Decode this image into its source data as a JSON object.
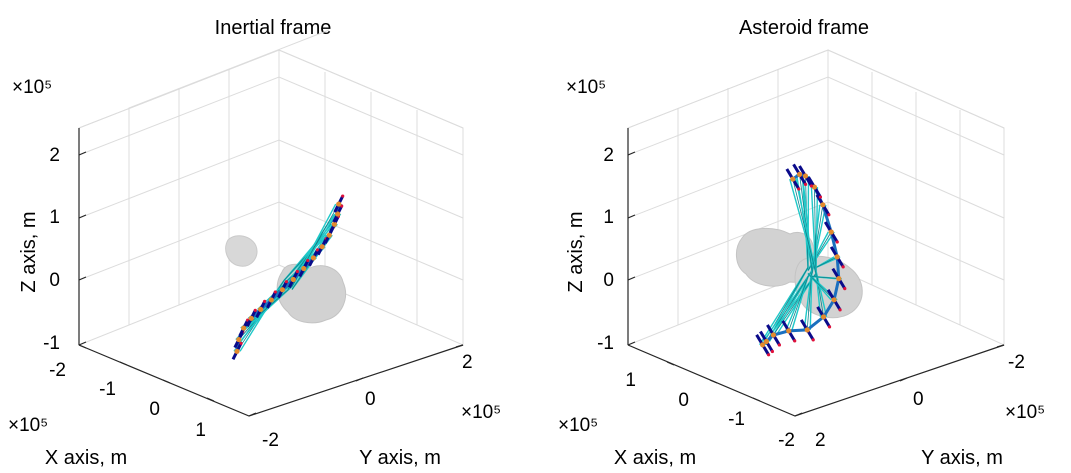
{
  "figure": {
    "background": "#ffffff",
    "colors": {
      "trajectory": "#1a6fbf",
      "tether": "#1fc8c8",
      "tether_edge": "#0f7f88",
      "node": "#e38a2e",
      "spacecraft": "#0a0a8a",
      "spacecraft_tip": "#e0103a",
      "asteroid": "#d2d2d2",
      "grid": "#dcdcdc"
    }
  },
  "chart_data": [
    {
      "type": "line3d",
      "title": "Inertial frame",
      "xlabel": "X axis, m",
      "ylabel": "Y axis, m",
      "zlabel": "Z axis, m",
      "x_multiplier": "×10⁵",
      "y_multiplier": "×10⁵",
      "z_multiplier": "×10⁵",
      "xticks": [
        "-2",
        "-1",
        "0",
        "1"
      ],
      "yticks": [
        "-2",
        "0",
        "2"
      ],
      "zticks": [
        "-1",
        "0",
        "1",
        "2"
      ],
      "xlim": [
        -2,
        1.5
      ],
      "ylim": [
        -2.5,
        2.5
      ],
      "zlim": [
        -1,
        2.2
      ],
      "grid": true,
      "series": [
        {
          "role": "trajectory",
          "x": [
            0.78,
            0.73,
            0.61,
            0.42,
            0.18,
            -0.08,
            -0.34,
            -0.58,
            -0.79,
            -0.96,
            -1.08,
            -1.13,
            -1.11,
            -1.01,
            -0.83
          ],
          "y": [
            -0.53,
            -0.52,
            -0.48,
            -0.42,
            -0.35,
            -0.26,
            -0.16,
            -0.05,
            0.07,
            0.2,
            0.34,
            0.49,
            0.64,
            0.8,
            0.96
          ],
          "z": [
            -0.61,
            -0.41,
            -0.2,
            -0.0,
            0.2,
            0.41,
            0.63,
            0.84,
            1.05,
            1.24,
            1.42,
            1.58,
            1.71,
            1.8,
            1.86
          ]
        }
      ]
    },
    {
      "type": "line3d",
      "title": "Asteroid frame",
      "xlabel": "X axis, m",
      "ylabel": "Y axis, m",
      "zlabel": "Z axis, m",
      "x_multiplier": "×10⁵",
      "y_multiplier": "×10⁵",
      "z_multiplier": "×10⁵",
      "xticks": [
        "1",
        "0",
        "-1",
        "-2"
      ],
      "yticks": [
        "2",
        "0",
        "-2"
      ],
      "zticks": [
        "-1",
        "0",
        "1",
        "2"
      ],
      "xlim": [
        -2,
        1.5
      ],
      "ylim": [
        -2.5,
        2.5
      ],
      "zlim": [
        -1,
        2.2
      ],
      "grid": true,
      "series": [
        {
          "role": "trajectory",
          "x": [
            0.3,
            0.05,
            -0.15,
            -0.31,
            -0.42,
            -0.48,
            -0.49,
            -0.45,
            -0.38,
            -0.27,
            -0.12,
            0.03,
            0.16,
            0.27,
            0.35
          ],
          "y": [
            2.05,
            1.75,
            1.4,
            0.85,
            0.25,
            -0.25,
            -0.55,
            -0.65,
            -0.55,
            -0.3,
            0.05,
            0.4,
            0.75,
            1.0,
            1.25
          ],
          "z": [
            -1.0,
            -0.8,
            -0.55,
            -0.3,
            -0.1,
            0.25,
            0.6,
            0.95,
            1.25,
            1.55,
            1.85,
            2.0,
            2.05,
            1.98,
            1.82
          ]
        }
      ]
    }
  ]
}
